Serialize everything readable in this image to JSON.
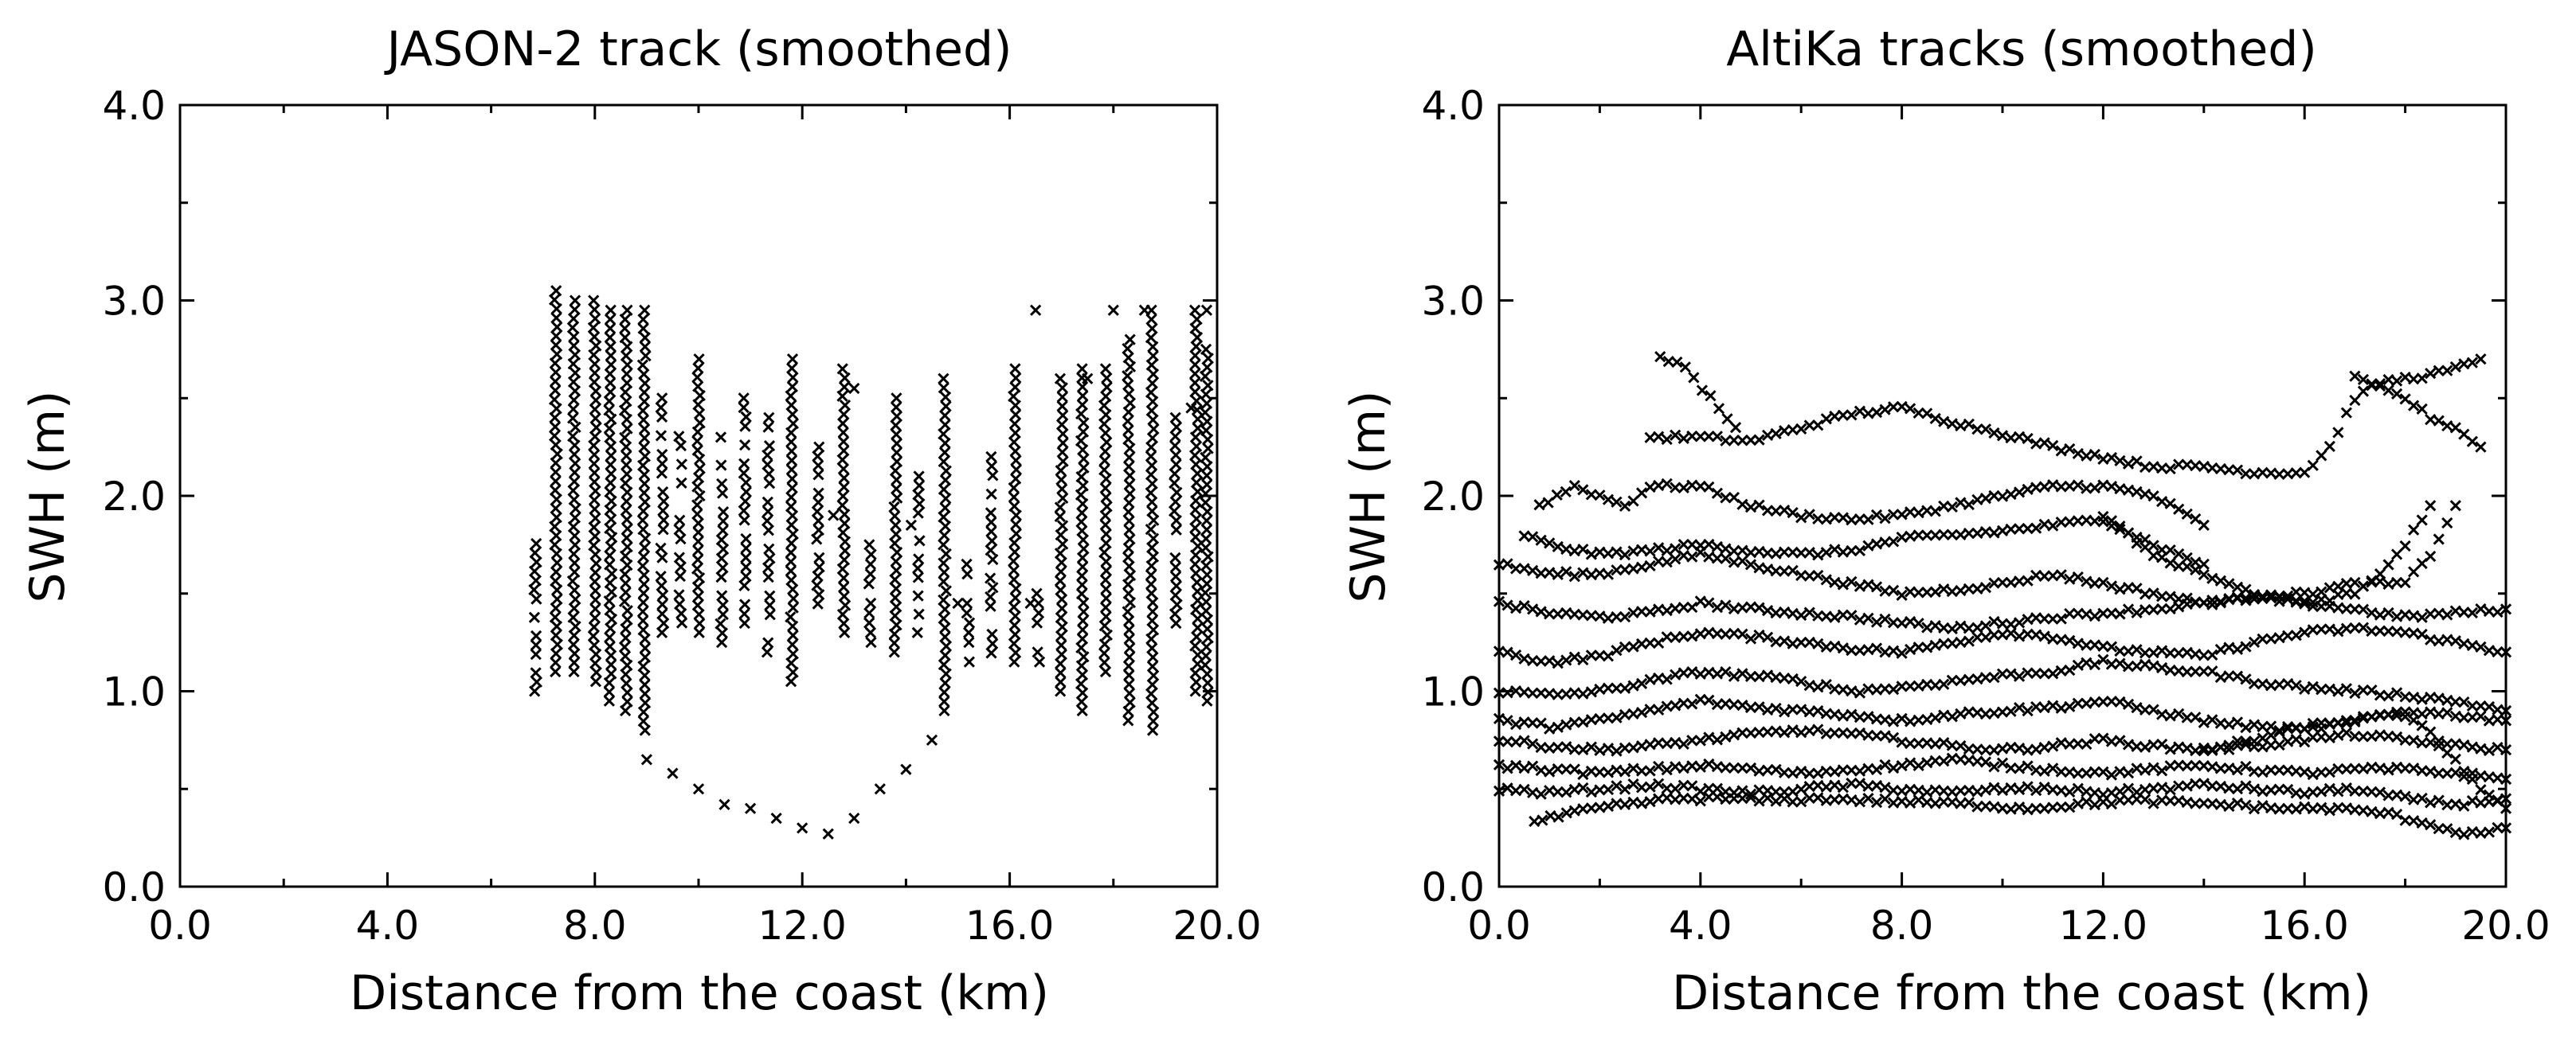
{
  "chart_data": [
    {
      "type": "scatter",
      "marker": "x",
      "title": "JASON-2 track (smoothed)",
      "xlabel": "Distance from the coast (km)",
      "ylabel": "SWH (m)",
      "xlim": [
        0,
        20
      ],
      "ylim": [
        0,
        4
      ],
      "xticks": [
        "0.0",
        "4.0",
        "8.0",
        "12.0",
        "16.0",
        "20.0"
      ],
      "yticks": [
        "0.0",
        "1.0",
        "2.0",
        "3.0",
        "4.0"
      ],
      "columns": [
        {
          "x": 6.85,
          "ymin": 1.0,
          "ymax": 1.85
        },
        {
          "x": 7.25,
          "ymin": 1.1,
          "ymax": 3.05
        },
        {
          "x": 7.6,
          "ymin": 1.1,
          "ymax": 3.0
        },
        {
          "x": 8.0,
          "ymin": 1.05,
          "ymax": 3.0
        },
        {
          "x": 8.3,
          "ymin": 0.95,
          "ymax": 2.95
        },
        {
          "x": 8.6,
          "ymin": 0.9,
          "ymax": 2.95
        },
        {
          "x": 8.95,
          "ymin": 0.8,
          "ymax": 2.95
        },
        {
          "x": 9.3,
          "ymin": 1.3,
          "ymax": 2.5
        },
        {
          "x": 9.65,
          "ymin": 1.35,
          "ymax": 2.4
        },
        {
          "x": 10.0,
          "ymin": 1.3,
          "ymax": 2.7
        },
        {
          "x": 10.45,
          "ymin": 1.25,
          "ymax": 2.3
        },
        {
          "x": 10.9,
          "ymin": 1.3,
          "ymax": 2.5
        },
        {
          "x": 11.35,
          "ymin": 1.2,
          "ymax": 2.4
        },
        {
          "x": 11.8,
          "ymin": 1.05,
          "ymax": 2.7
        },
        {
          "x": 12.3,
          "ymin": 1.4,
          "ymax": 2.25
        },
        {
          "x": 12.8,
          "ymin": 1.3,
          "ymax": 2.65
        },
        {
          "x": 13.3,
          "ymin": 1.25,
          "ymax": 1.8
        },
        {
          "x": 13.8,
          "ymin": 1.2,
          "ymax": 2.5
        },
        {
          "x": 14.25,
          "ymin": 1.3,
          "ymax": 2.1
        },
        {
          "x": 14.75,
          "ymin": 0.9,
          "ymax": 2.6
        },
        {
          "x": 15.2,
          "ymin": 1.15,
          "ymax": 1.7
        },
        {
          "x": 15.65,
          "ymin": 1.1,
          "ymax": 2.2
        },
        {
          "x": 16.1,
          "ymin": 1.15,
          "ymax": 2.65
        },
        {
          "x": 16.55,
          "ymin": 1.15,
          "ymax": 1.5
        },
        {
          "x": 17.0,
          "ymin": 1.0,
          "ymax": 2.6
        },
        {
          "x": 17.4,
          "ymin": 0.9,
          "ymax": 2.65
        },
        {
          "x": 17.85,
          "ymin": 1.1,
          "ymax": 2.65
        },
        {
          "x": 18.3,
          "ymin": 0.85,
          "ymax": 2.8
        },
        {
          "x": 18.75,
          "ymin": 0.8,
          "ymax": 2.95
        },
        {
          "x": 19.2,
          "ymin": 1.3,
          "ymax": 2.4
        },
        {
          "x": 19.6,
          "ymin": 1.0,
          "ymax": 2.95
        },
        {
          "x": 19.8,
          "ymin": 0.95,
          "ymax": 2.75
        }
      ],
      "arc": {
        "x": [
          9.0,
          9.5,
          10.0,
          10.5,
          11.0,
          11.5,
          12.0,
          12.5,
          13.0,
          13.5,
          14.0,
          14.5
        ],
        "y": [
          0.65,
          0.58,
          0.5,
          0.42,
          0.4,
          0.35,
          0.3,
          0.27,
          0.35,
          0.5,
          0.6,
          0.75
        ]
      },
      "extra_points": {
        "x": [
          16.5,
          17.5,
          18.0,
          18.6,
          19.5,
          19.8,
          16.4,
          15.0,
          14.1,
          13.0,
          12.6
        ],
        "y": [
          2.95,
          2.6,
          2.95,
          2.95,
          2.45,
          2.95,
          1.45,
          1.45,
          1.85,
          2.55,
          1.9
        ]
      }
    },
    {
      "type": "line-scatter",
      "marker": "x",
      "title": "AltiKa tracks (smoothed)",
      "xlabel": "Distance from the coast (km)",
      "ylabel": "SWH (m)",
      "xlim": [
        0,
        20
      ],
      "ylim": [
        0,
        4
      ],
      "xticks": [
        "0.0",
        "4.0",
        "8.0",
        "12.0",
        "16.0",
        "20.0"
      ],
      "yticks": [
        "0.0",
        "1.0",
        "2.0",
        "3.0",
        "4.0"
      ],
      "tracks": [
        {
          "x": [
            3.0,
            4.0,
            5.0,
            6.0,
            7.0,
            8.0,
            9.0,
            10.0,
            11.0,
            12.0,
            13.0,
            14.0,
            15.0,
            16.0,
            16.5,
            17.0,
            17.5,
            18.0,
            18.5,
            19.0,
            19.5
          ],
          "y": [
            2.3,
            2.3,
            2.28,
            2.35,
            2.42,
            2.45,
            2.38,
            2.32,
            2.25,
            2.2,
            2.15,
            2.15,
            2.12,
            2.12,
            2.25,
            2.5,
            2.58,
            2.6,
            2.62,
            2.65,
            2.7
          ]
        },
        {
          "x": [
            3.2,
            3.7,
            4.2,
            4.7
          ],
          "y": [
            2.72,
            2.65,
            2.5,
            2.35
          ]
        },
        {
          "x": [
            17.0,
            17.5,
            18.0,
            18.5,
            19.0,
            19.5
          ],
          "y": [
            2.6,
            2.55,
            2.5,
            2.4,
            2.35,
            2.25
          ]
        },
        {
          "x": [
            0.8,
            1.5,
            2.0,
            2.5,
            3.0,
            4.0,
            5.0,
            6.0,
            7.0,
            8.0,
            9.0,
            10.0,
            11.0,
            12.0,
            13.0,
            14.0
          ],
          "y": [
            1.95,
            2.05,
            2.0,
            1.95,
            2.05,
            2.05,
            1.95,
            1.9,
            1.88,
            1.9,
            1.95,
            2.0,
            2.05,
            2.05,
            2.0,
            1.85
          ]
        },
        {
          "x": [
            0.5,
            1.0,
            2.0,
            3.0,
            4.0,
            5.0,
            6.0,
            7.0,
            8.0,
            9.0,
            10.0,
            11.0,
            12.0,
            13.0,
            14.0
          ],
          "y": [
            1.8,
            1.75,
            1.7,
            1.72,
            1.75,
            1.72,
            1.7,
            1.72,
            1.78,
            1.8,
            1.82,
            1.85,
            1.88,
            1.75,
            1.65
          ]
        },
        {
          "x": [
            0.0,
            1.0,
            2.0,
            3.0,
            4.0,
            5.0,
            6.0,
            7.0,
            8.0,
            9.0,
            10.0,
            11.0,
            12.0,
            13.0,
            14.0,
            15.0,
            16.0,
            17.0,
            18.0,
            18.5,
            19.0
          ],
          "y": [
            1.65,
            1.6,
            1.6,
            1.65,
            1.7,
            1.65,
            1.6,
            1.55,
            1.5,
            1.52,
            1.55,
            1.6,
            1.55,
            1.5,
            1.45,
            1.48,
            1.5,
            1.55,
            1.55,
            1.7,
            1.95
          ]
        },
        {
          "x": [
            0.0,
            1.0,
            2.0,
            3.0,
            4.0,
            5.0,
            6.0,
            7.0,
            8.0,
            9.0,
            10.0,
            11.0,
            12.0,
            13.0,
            14.0,
            15.0,
            16.0,
            17.0,
            18.0,
            19.0,
            20.0
          ],
          "y": [
            1.45,
            1.4,
            1.38,
            1.4,
            1.45,
            1.42,
            1.4,
            1.38,
            1.35,
            1.32,
            1.35,
            1.38,
            1.4,
            1.42,
            1.45,
            1.48,
            1.45,
            1.42,
            1.38,
            1.4,
            1.42
          ]
        },
        {
          "x": [
            0.0,
            1.0,
            2.0,
            3.0,
            4.0,
            5.0,
            6.0,
            7.0,
            8.0,
            9.0,
            10.0,
            11.0,
            12.0,
            13.0,
            14.0,
            15.0,
            16.0,
            17.0,
            18.0,
            19.0,
            20.0
          ],
          "y": [
            1.2,
            1.15,
            1.18,
            1.25,
            1.3,
            1.28,
            1.25,
            1.22,
            1.2,
            1.25,
            1.3,
            1.28,
            1.22,
            1.2,
            1.18,
            1.25,
            1.3,
            1.32,
            1.3,
            1.25,
            1.2
          ]
        },
        {
          "x": [
            0.0,
            1.0,
            2.0,
            3.0,
            4.0,
            5.0,
            6.0,
            7.0,
            8.0,
            9.0,
            10.0,
            11.0,
            12.0,
            13.0,
            14.0,
            15.0,
            16.0,
            17.0,
            18.0,
            19.0,
            20.0
          ],
          "y": [
            1.0,
            0.98,
            1.0,
            1.05,
            1.1,
            1.08,
            1.05,
            1.0,
            1.02,
            1.05,
            1.08,
            1.1,
            1.15,
            1.12,
            1.1,
            1.05,
            1.02,
            1.0,
            0.98,
            0.95,
            0.9
          ]
        },
        {
          "x": [
            0.0,
            1.0,
            2.0,
            3.0,
            4.0,
            5.0,
            6.0,
            7.0,
            8.0,
            9.0,
            10.0,
            11.0,
            12.0,
            13.0,
            14.0,
            15.0,
            16.0,
            17.0,
            18.0,
            19.0,
            20.0
          ],
          "y": [
            0.85,
            0.82,
            0.85,
            0.9,
            0.95,
            0.92,
            0.9,
            0.88,
            0.85,
            0.88,
            0.9,
            0.92,
            0.95,
            0.9,
            0.85,
            0.82,
            0.8,
            0.85,
            0.9,
            0.88,
            0.85
          ]
        },
        {
          "x": [
            0.0,
            1.0,
            2.0,
            3.0,
            4.0,
            5.0,
            6.0,
            7.0,
            8.0,
            9.0,
            10.0,
            11.0,
            12.0,
            13.0,
            14.0,
            15.0,
            16.0,
            17.0,
            18.0,
            19.0,
            20.0
          ],
          "y": [
            0.75,
            0.72,
            0.7,
            0.72,
            0.75,
            0.78,
            0.8,
            0.78,
            0.75,
            0.72,
            0.7,
            0.72,
            0.75,
            0.72,
            0.7,
            0.72,
            0.75,
            0.78,
            0.75,
            0.72,
            0.7
          ]
        },
        {
          "x": [
            0.0,
            1.0,
            2.0,
            3.0,
            4.0,
            5.0,
            6.0,
            7.0,
            8.0,
            9.0,
            10.0,
            11.0,
            12.0,
            13.0,
            14.0,
            15.0,
            16.0,
            17.0,
            18.0,
            19.0,
            20.0
          ],
          "y": [
            0.62,
            0.6,
            0.58,
            0.6,
            0.62,
            0.6,
            0.58,
            0.6,
            0.62,
            0.65,
            0.62,
            0.6,
            0.58,
            0.6,
            0.62,
            0.6,
            0.58,
            0.6,
            0.6,
            0.58,
            0.55
          ]
        },
        {
          "x": [
            0.0,
            1.0,
            2.0,
            3.0,
            4.0,
            5.0,
            6.0,
            7.0,
            8.0,
            9.0,
            10.0,
            11.0,
            12.0,
            13.0,
            14.0,
            15.0,
            16.0,
            17.0,
            18.0,
            19.0,
            20.0
          ],
          "y": [
            0.5,
            0.48,
            0.5,
            0.52,
            0.5,
            0.48,
            0.5,
            0.52,
            0.5,
            0.48,
            0.5,
            0.5,
            0.48,
            0.5,
            0.52,
            0.5,
            0.48,
            0.5,
            0.45,
            0.42,
            0.45
          ]
        },
        {
          "x": [
            0.7,
            1.5,
            2.5,
            3.5,
            4.5,
            5.5,
            6.5,
            7.5,
            8.5,
            9.5,
            10.5,
            11.5,
            12.5,
            13.5,
            14.5,
            15.5,
            16.5,
            17.5,
            18.5,
            19.0,
            19.5,
            20.0
          ],
          "y": [
            0.33,
            0.38,
            0.42,
            0.45,
            0.45,
            0.44,
            0.45,
            0.44,
            0.43,
            0.42,
            0.4,
            0.42,
            0.44,
            0.43,
            0.42,
            0.4,
            0.4,
            0.38,
            0.32,
            0.28,
            0.27,
            0.3
          ]
        },
        {
          "x": [
            14.0,
            15.0,
            16.0,
            17.0,
            18.0,
            18.5,
            19.0,
            19.5,
            20.0
          ],
          "y": [
            0.7,
            0.75,
            0.82,
            0.85,
            0.88,
            0.78,
            0.65,
            0.5,
            0.4
          ]
        },
        {
          "x": [
            12.0,
            13.0,
            14.0,
            15.0,
            16.0,
            17.0,
            17.5,
            18.0,
            18.5
          ],
          "y": [
            1.9,
            1.7,
            1.6,
            1.5,
            1.45,
            1.5,
            1.6,
            1.75,
            1.95
          ]
        }
      ]
    }
  ]
}
